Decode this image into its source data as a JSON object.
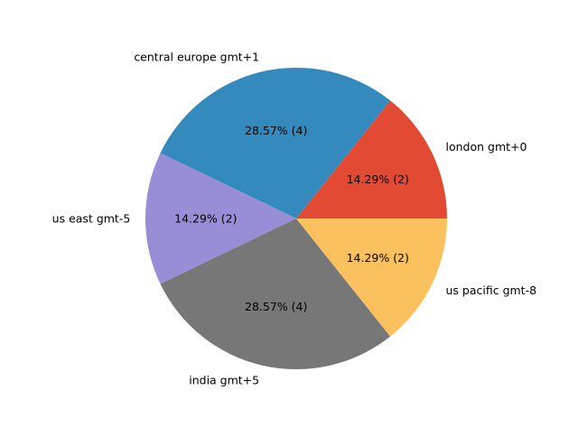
{
  "chart_data": {
    "type": "pie",
    "categories": [
      "london gmt+0",
      "central europe gmt+1",
      "us east gmt-5",
      "india gmt+5",
      "us pacific gmt-8"
    ],
    "values": [
      2,
      4,
      2,
      4,
      2
    ],
    "percent_labels": [
      "14.29%  (2)",
      "28.57%  (4)",
      "14.29%  (2)",
      "28.57%  (4)",
      "14.29%  (2)"
    ],
    "colors": [
      "#e24a33",
      "#348abd",
      "#988ed5",
      "#777777",
      "#fbc15e"
    ],
    "start_angle_deg": 0,
    "direction": "counterclockwise",
    "edge_color": "#ffffff"
  }
}
